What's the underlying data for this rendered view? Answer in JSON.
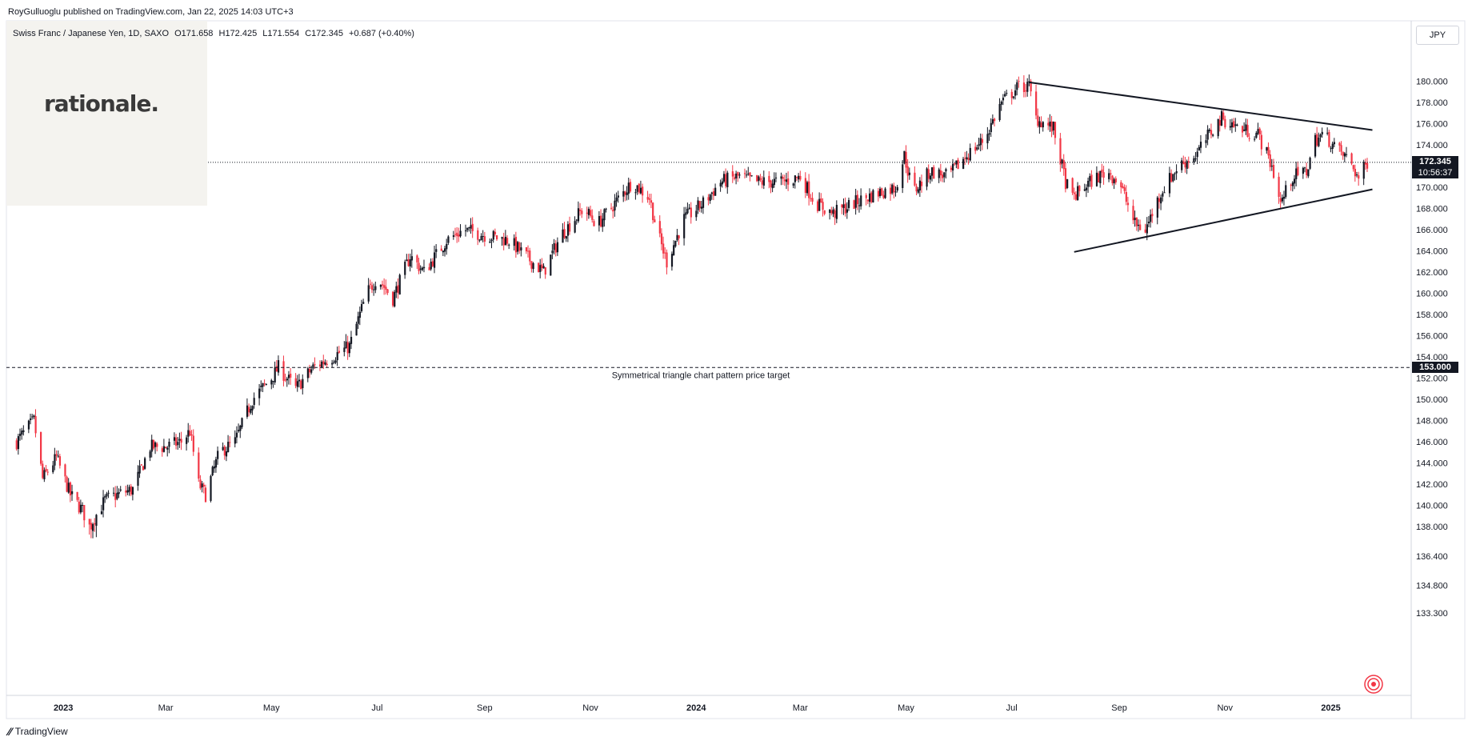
{
  "publisher": "RoyGulluoglu published on TradingView.com, Jan 22, 2025 14:03 UTC+3",
  "symbol": {
    "name": "Swiss Franc / Japanese Yen, 1D, SAXO",
    "open": "O171.658",
    "high": "H172.425",
    "low": "L171.554",
    "close": "C172.345",
    "change": "+0.687 (+0.40%)"
  },
  "watermark": "rationale.",
  "currency": "JPY",
  "last_price": {
    "value": "172.345",
    "countdown": "10:56:37"
  },
  "target_price_tag": "153.000",
  "footer": {
    "brand": "TradingView"
  },
  "colors": {
    "up": "#131722",
    "down": "#f23645",
    "text": "#131722"
  },
  "chart_data": {
    "type": "candlestick",
    "title": "Swiss Franc / Japanese Yen, 1D, SAXO",
    "ylim": [
      133.3,
      181.3
    ],
    "y_ticks": [
      "180.000",
      "178.000",
      "176.000",
      "174.000",
      "172.000",
      "170.000",
      "168.000",
      "166.000",
      "164.000",
      "162.000",
      "160.000",
      "158.000",
      "156.000",
      "154.000",
      "152.000",
      "150.000",
      "148.000",
      "146.000",
      "144.000",
      "142.000",
      "140.000",
      "138.000",
      "136.400",
      "134.800",
      "133.300"
    ],
    "x_ticks": [
      "2023",
      "Mar",
      "May",
      "Jul",
      "Sep",
      "Nov",
      "2024",
      "Mar",
      "May",
      "Jul",
      "Sep",
      "Nov",
      "2025"
    ],
    "price_path": [
      [
        "2022-12-05",
        146.0
      ],
      [
        "2022-12-15",
        148.0
      ],
      [
        "2022-12-20",
        142.5
      ],
      [
        "2022-12-28",
        144.5
      ],
      [
        "2023-01-05",
        141.0
      ],
      [
        "2023-01-12",
        139.5
      ],
      [
        "2023-01-16",
        138.0
      ],
      [
        "2023-01-25",
        140.5
      ],
      [
        "2023-02-01",
        141.0
      ],
      [
        "2023-02-10",
        141.5
      ],
      [
        "2023-02-20",
        145.5
      ],
      [
        "2023-03-01",
        145.5
      ],
      [
        "2023-03-10",
        146.0
      ],
      [
        "2023-03-15",
        147.0
      ],
      [
        "2023-03-20",
        142.0
      ],
      [
        "2023-03-24",
        141.0
      ],
      [
        "2023-04-01",
        145.0
      ],
      [
        "2023-04-10",
        146.0
      ],
      [
        "2023-04-20",
        150.0
      ],
      [
        "2023-05-01",
        152.0
      ],
      [
        "2023-05-05",
        153.0
      ],
      [
        "2023-05-15",
        151.0
      ],
      [
        "2023-05-25",
        153.0
      ],
      [
        "2023-06-05",
        154.0
      ],
      [
        "2023-06-15",
        155.0
      ],
      [
        "2023-06-25",
        160.0
      ],
      [
        "2023-07-01",
        161.5
      ],
      [
        "2023-07-10",
        159.5
      ],
      [
        "2023-07-20",
        163.5
      ],
      [
        "2023-07-28",
        162.0
      ],
      [
        "2023-08-10",
        165.0
      ],
      [
        "2023-08-20",
        166.0
      ],
      [
        "2023-09-01",
        165.5
      ],
      [
        "2023-09-15",
        165.0
      ],
      [
        "2023-09-28",
        163.0
      ],
      [
        "2023-10-05",
        162.0
      ],
      [
        "2023-10-15",
        165.5
      ],
      [
        "2023-10-28",
        168.0
      ],
      [
        "2023-11-05",
        166.5
      ],
      [
        "2023-11-15",
        168.5
      ],
      [
        "2023-11-25",
        170.5
      ],
      [
        "2023-12-05",
        169.0
      ],
      [
        "2023-12-10",
        165.5
      ],
      [
        "2023-12-15",
        163.0
      ],
      [
        "2023-12-25",
        167.0
      ],
      [
        "2024-01-05",
        168.5
      ],
      [
        "2024-01-15",
        170.5
      ],
      [
        "2024-01-25",
        171.0
      ],
      [
        "2024-02-05",
        170.5
      ],
      [
        "2024-02-20",
        170.5
      ],
      [
        "2024-03-01",
        171.0
      ],
      [
        "2024-03-10",
        168.5
      ],
      [
        "2024-03-20",
        167.5
      ],
      [
        "2024-04-01",
        168.5
      ],
      [
        "2024-04-15",
        169.5
      ],
      [
        "2024-04-25",
        170.0
      ],
      [
        "2024-04-30",
        173.0
      ],
      [
        "2024-05-05",
        169.5
      ],
      [
        "2024-05-15",
        171.5
      ],
      [
        "2024-05-25",
        171.0
      ],
      [
        "2024-06-05",
        173.0
      ],
      [
        "2024-06-15",
        174.5
      ],
      [
        "2024-06-25",
        178.0
      ],
      [
        "2024-07-05",
        179.5
      ],
      [
        "2024-07-11",
        179.5
      ],
      [
        "2024-07-15",
        176.5
      ],
      [
        "2024-07-25",
        175.5
      ],
      [
        "2024-08-01",
        170.5
      ],
      [
        "2024-08-05",
        169.0
      ],
      [
        "2024-08-15",
        170.5
      ],
      [
        "2024-08-25",
        171.5
      ],
      [
        "2024-09-01",
        170.5
      ],
      [
        "2024-09-10",
        166.5
      ],
      [
        "2024-09-16",
        166.0
      ],
      [
        "2024-09-25",
        169.5
      ],
      [
        "2024-10-05",
        172.0
      ],
      [
        "2024-10-15",
        173.0
      ],
      [
        "2024-10-25",
        175.5
      ],
      [
        "2024-10-30",
        176.5
      ],
      [
        "2024-11-10",
        175.5
      ],
      [
        "2024-11-20",
        175.0
      ],
      [
        "2024-11-28",
        172.0
      ],
      [
        "2024-12-03",
        168.5
      ],
      [
        "2024-12-10",
        171.0
      ],
      [
        "2024-12-18",
        171.5
      ],
      [
        "2024-12-23",
        174.5
      ],
      [
        "2024-12-28",
        175.0
      ],
      [
        "2025-01-05",
        173.5
      ],
      [
        "2025-01-12",
        172.5
      ],
      [
        "2025-01-17",
        170.8
      ],
      [
        "2025-01-22",
        172.345
      ]
    ],
    "lines": [
      {
        "kind": "trendline",
        "from": [
          "2024-07-11",
          179.9
        ],
        "to": [
          "2025-01-25",
          175.4
        ]
      },
      {
        "kind": "trendline",
        "from": [
          "2024-08-06",
          163.9
        ],
        "to": [
          "2025-01-25",
          169.8
        ]
      },
      {
        "kind": "horizontal-dashed",
        "y": 153.0,
        "label": "Symmetrical triangle chart pattern price target"
      },
      {
        "kind": "horizontal-dotted",
        "y": 172.345
      }
    ]
  }
}
